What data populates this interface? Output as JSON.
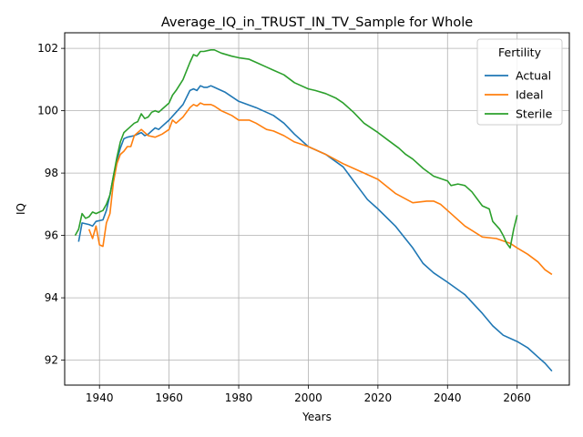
{
  "chart_data": {
    "type": "line",
    "title": "Average_IQ_in_TRUST_IN_TV_Sample for Whole",
    "xlabel": "Years",
    "ylabel": "IQ",
    "xlim": [
      1930,
      2075
    ],
    "ylim": [
      91.2,
      102.5
    ],
    "xticks": [
      1940,
      1960,
      1980,
      2000,
      2020,
      2040,
      2060
    ],
    "yticks": [
      92,
      94,
      96,
      98,
      100,
      102
    ],
    "grid": true,
    "legend": {
      "title": "Fertility",
      "placement": "top-right"
    },
    "series": [
      {
        "name": "Actual",
        "color": "#1f77b4",
        "x": [
          1934,
          1935,
          1937,
          1938,
          1939,
          1941,
          1942,
          1943,
          1944,
          1945,
          1946,
          1947,
          1948,
          1950,
          1952,
          1953,
          1954,
          1955,
          1956,
          1957,
          1958,
          1960,
          1962,
          1964,
          1966,
          1967,
          1968,
          1969,
          1970,
          1971,
          1972,
          1973,
          1974,
          1976,
          1978,
          1980,
          1985,
          1990,
          1993,
          1996,
          2000,
          2005,
          2010,
          2014,
          2017,
          2020,
          2025,
          2030,
          2033,
          2036,
          2040,
          2045,
          2050,
          2053,
          2056,
          2060,
          2063,
          2066,
          2068,
          2070
        ],
        "values": [
          95.8,
          96.4,
          96.35,
          96.3,
          96.45,
          96.5,
          96.8,
          97.3,
          97.9,
          98.4,
          98.8,
          99.1,
          99.15,
          99.2,
          99.3,
          99.2,
          99.25,
          99.35,
          99.45,
          99.4,
          99.5,
          99.7,
          99.95,
          100.2,
          100.65,
          100.7,
          100.65,
          100.8,
          100.75,
          100.75,
          100.8,
          100.75,
          100.7,
          100.6,
          100.45,
          100.3,
          100.1,
          99.85,
          99.6,
          99.25,
          98.85,
          98.6,
          98.2,
          97.6,
          97.15,
          96.85,
          96.3,
          95.6,
          95.1,
          94.8,
          94.5,
          94.1,
          93.5,
          93.1,
          92.8,
          92.6,
          92.4,
          92.1,
          91.9,
          91.65
        ]
      },
      {
        "name": "Ideal",
        "color": "#ff7f0e",
        "x": [
          1937,
          1938,
          1939,
          1940,
          1941,
          1942,
          1943,
          1944,
          1945,
          1946,
          1947,
          1948,
          1949,
          1950,
          1952,
          1954,
          1956,
          1957,
          1958,
          1960,
          1961,
          1962,
          1964,
          1966,
          1967,
          1968,
          1969,
          1970,
          1972,
          1973,
          1975,
          1978,
          1980,
          1983,
          1985,
          1988,
          1990,
          1993,
          1996,
          2000,
          2005,
          2010,
          2015,
          2020,
          2025,
          2030,
          2034,
          2036,
          2038,
          2040,
          2045,
          2050,
          2054,
          2058,
          2060,
          2063,
          2066,
          2068,
          2070
        ],
        "values": [
          96.2,
          95.9,
          96.3,
          95.7,
          95.65,
          96.4,
          96.7,
          97.7,
          98.3,
          98.6,
          98.7,
          98.85,
          98.85,
          99.2,
          99.4,
          99.2,
          99.15,
          99.2,
          99.25,
          99.4,
          99.7,
          99.6,
          99.8,
          100.1,
          100.2,
          100.15,
          100.25,
          100.2,
          100.2,
          100.15,
          100.0,
          99.85,
          99.7,
          99.7,
          99.6,
          99.4,
          99.35,
          99.2,
          99.0,
          98.85,
          98.6,
          98.3,
          98.05,
          97.8,
          97.35,
          97.05,
          97.1,
          97.1,
          97.0,
          96.8,
          96.3,
          95.95,
          95.9,
          95.75,
          95.6,
          95.4,
          95.15,
          94.9,
          94.75
        ]
      },
      {
        "name": "Sterile",
        "color": "#2ca02c",
        "x": [
          1933,
          1934,
          1935,
          1936,
          1937,
          1938,
          1939,
          1940,
          1941,
          1942,
          1943,
          1944,
          1945,
          1946,
          1947,
          1948,
          1950,
          1951,
          1952,
          1953,
          1954,
          1955,
          1956,
          1957,
          1958,
          1960,
          1961,
          1962,
          1964,
          1966,
          1967,
          1968,
          1969,
          1970,
          1972,
          1973,
          1975,
          1978,
          1980,
          1983,
          1985,
          1988,
          1990,
          1993,
          1996,
          2000,
          2002,
          2005,
          2008,
          2010,
          2013,
          2016,
          2020,
          2023,
          2026,
          2028,
          2030,
          2033,
          2036,
          2040,
          2041,
          2043,
          2045,
          2047,
          2050,
          2052,
          2053,
          2055,
          2056,
          2057,
          2058,
          2059,
          2060
        ],
        "values": [
          96.0,
          96.2,
          96.7,
          96.55,
          96.6,
          96.75,
          96.7,
          96.75,
          96.8,
          97.0,
          97.3,
          97.9,
          98.5,
          99.0,
          99.3,
          99.4,
          99.6,
          99.65,
          99.9,
          99.75,
          99.8,
          99.95,
          100.0,
          99.95,
          100.05,
          100.25,
          100.5,
          100.65,
          101.0,
          101.55,
          101.8,
          101.75,
          101.9,
          101.9,
          101.95,
          101.95,
          101.85,
          101.75,
          101.7,
          101.65,
          101.55,
          101.4,
          101.3,
          101.15,
          100.9,
          100.7,
          100.65,
          100.55,
          100.4,
          100.25,
          99.95,
          99.6,
          99.3,
          99.05,
          98.8,
          98.6,
          98.45,
          98.15,
          97.9,
          97.75,
          97.6,
          97.65,
          97.6,
          97.4,
          96.95,
          96.85,
          96.45,
          96.2,
          96.0,
          95.75,
          95.6,
          96.2,
          96.65
        ]
      }
    ]
  }
}
